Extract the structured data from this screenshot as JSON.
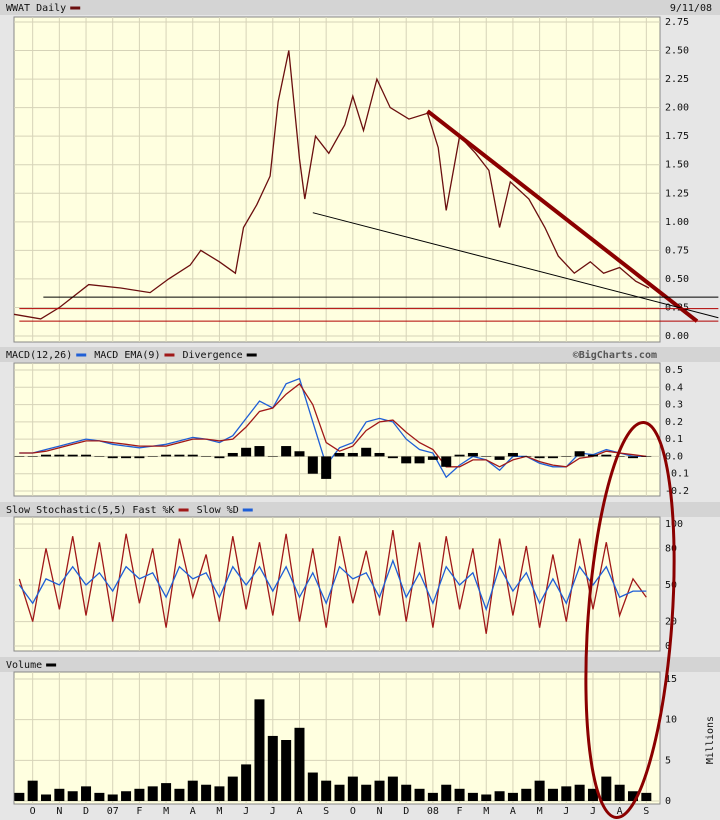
{
  "chart_data": [
    {
      "type": "line",
      "date": "9/11/08",
      "grid": true,
      "xlim": [
        -0.7,
        23.4
      ],
      "ylim": [
        0,
        2.75
      ],
      "yticks": [
        {
          "value": 0,
          "label": "0.00"
        },
        {
          "value": 0.25,
          "label": "0.25"
        },
        {
          "value": 0.5,
          "label": "0.50"
        },
        {
          "value": 0.75,
          "label": "0.75"
        },
        {
          "value": 1,
          "label": "1.00"
        },
        {
          "value": 1.25,
          "label": "1.25"
        },
        {
          "value": 1.5,
          "label": "1.50"
        },
        {
          "value": 1.75,
          "label": "1.75"
        },
        {
          "value": 2,
          "label": "2.00"
        },
        {
          "value": 2.25,
          "label": "2.25"
        },
        {
          "value": 2.5,
          "label": "2.50"
        },
        {
          "value": 2.75,
          "label": "2.75"
        }
      ],
      "x": [
        -0.7,
        0.3,
        1.0,
        2.1,
        3.3,
        4.4,
        5.1,
        5.9,
        6.3,
        7.0,
        7.6,
        7.9,
        8.4,
        8.9,
        9.2,
        9.6,
        10.0,
        10.2,
        10.6,
        11.1,
        11.7,
        12.0,
        12.4,
        12.9,
        13.4,
        14.1,
        14.8,
        15.2,
        15.5,
        16.0,
        16.6,
        17.1,
        17.5,
        17.9,
        18.6,
        19.2,
        19.7,
        20.3,
        20.9,
        21.4,
        22.0,
        22.6,
        23.1
      ],
      "series": [
        {
          "name": "WWAT Daily",
          "color": "#6b0f0f",
          "values": [
            0.19,
            0.15,
            0.25,
            0.45,
            0.42,
            0.38,
            0.5,
            0.62,
            0.75,
            0.65,
            0.55,
            0.95,
            1.15,
            1.4,
            2.05,
            2.5,
            1.55,
            1.2,
            1.75,
            1.6,
            1.85,
            2.1,
            1.8,
            2.25,
            2.0,
            1.9,
            1.95,
            1.65,
            1.1,
            1.75,
            1.6,
            1.45,
            0.95,
            1.35,
            1.2,
            0.95,
            0.7,
            0.55,
            0.65,
            0.55,
            0.6,
            0.48,
            0.42
          ]
        }
      ],
      "trendlines": [
        {
          "x": [
            14.8,
            24.9
          ],
          "y": [
            1.97,
            0.13
          ],
          "color": "#8b0000",
          "weight": "heavy"
        },
        {
          "x": [
            10.5,
            25.7
          ],
          "y": [
            1.08,
            0.16
          ],
          "color": "#000000",
          "weight": "thin"
        },
        {
          "x": [
            0.4,
            25.7
          ],
          "y": [
            0.34,
            0.34
          ],
          "color": "#000000",
          "weight": "thin"
        },
        {
          "x": [
            -0.5,
            25.7
          ],
          "y": [
            0.24,
            0.24
          ],
          "color": "#b00000",
          "weight": "thin"
        },
        {
          "x": [
            -0.5,
            25.7
          ],
          "y": [
            0.13,
            0.13
          ],
          "color": "#b00000",
          "weight": "thin"
        }
      ]
    },
    {
      "type": "line",
      "credit": "©BigCharts.com",
      "grid": true,
      "xlim": [
        -0.7,
        23.4
      ],
      "ylim": [
        -0.2,
        0.5
      ],
      "yticks": [
        0.5,
        0.4,
        0.3,
        0.2,
        0.1,
        {
          "value": 0,
          "label": "0.0"
        },
        -0.1,
        -0.2
      ],
      "x": [
        -0.5,
        0,
        0.5,
        1,
        1.5,
        2,
        2.5,
        3,
        3.5,
        4,
        4.5,
        5,
        5.5,
        6,
        6.5,
        7,
        7.5,
        8,
        8.5,
        9,
        9.5,
        10,
        10.5,
        11,
        11.5,
        12,
        12.5,
        13,
        13.5,
        14,
        14.5,
        15,
        15.5,
        16,
        16.5,
        17,
        17.5,
        18,
        18.5,
        19,
        19.5,
        20,
        20.5,
        21,
        21.5,
        22,
        22.5,
        23
      ],
      "series": [
        {
          "name": "MACD(12,26)",
          "color": "#1f5fd6",
          "values": [
            0.02,
            0.02,
            0.04,
            0.06,
            0.08,
            0.1,
            0.09,
            0.07,
            0.06,
            0.05,
            0.06,
            0.07,
            0.09,
            0.11,
            0.1,
            0.08,
            0.12,
            0.22,
            0.32,
            0.28,
            0.42,
            0.45,
            0.2,
            -0.05,
            0.05,
            0.08,
            0.2,
            0.22,
            0.2,
            0.1,
            0.04,
            0.02,
            -0.12,
            -0.05,
            0.0,
            -0.02,
            -0.08,
            0.0,
            0.0,
            -0.04,
            -0.06,
            -0.06,
            0.02,
            0.01,
            0.04,
            0.02,
            0.0,
            0.0
          ]
        },
        {
          "name": "MACD EMA(9)",
          "color": "#a01818",
          "values": [
            0.02,
            0.02,
            0.03,
            0.05,
            0.07,
            0.09,
            0.09,
            0.08,
            0.07,
            0.06,
            0.06,
            0.06,
            0.08,
            0.1,
            0.1,
            0.09,
            0.1,
            0.17,
            0.26,
            0.28,
            0.36,
            0.42,
            0.3,
            0.08,
            0.03,
            0.06,
            0.15,
            0.2,
            0.21,
            0.14,
            0.08,
            0.04,
            -0.06,
            -0.06,
            -0.02,
            -0.02,
            -0.06,
            -0.02,
            0.0,
            -0.03,
            -0.05,
            -0.06,
            -0.01,
            0.0,
            0.03,
            0.02,
            0.01,
            0.0
          ]
        },
        {
          "name": "Divergence",
          "color": "#000000",
          "type": "bar",
          "values": [
            0,
            0,
            0.01,
            0.01,
            0.01,
            0.01,
            0,
            -0.01,
            -0.01,
            -0.01,
            0,
            0.01,
            0.01,
            0.01,
            0,
            -0.01,
            0.02,
            0.05,
            0.06,
            0,
            0.06,
            0.03,
            -0.1,
            -0.13,
            0.02,
            0.02,
            0.05,
            0.02,
            -0.01,
            -0.04,
            -0.04,
            -0.02,
            -0.06,
            0.01,
            0.02,
            0,
            -0.02,
            0.02,
            0,
            -0.01,
            -0.01,
            0,
            0.03,
            0.01,
            0.01,
            0,
            -0.01,
            0
          ]
        }
      ]
    },
    {
      "type": "line",
      "title": "Slow Stochastic(5,5)",
      "grid": true,
      "xlim": [
        -0.7,
        23.4
      ],
      "ylim": [
        0,
        100
      ],
      "yticks": [
        100,
        80,
        50,
        20,
        0
      ],
      "x": [
        -0.5,
        0,
        0.5,
        1,
        1.5,
        2,
        2.5,
        3,
        3.5,
        4,
        4.5,
        5,
        5.5,
        6,
        6.5,
        7,
        7.5,
        8,
        8.5,
        9,
        9.5,
        10,
        10.5,
        11,
        11.5,
        12,
        12.5,
        13,
        13.5,
        14,
        14.5,
        15,
        15.5,
        16,
        16.5,
        17,
        17.5,
        18,
        18.5,
        19,
        19.5,
        20,
        20.5,
        21,
        21.5,
        22,
        22.5,
        23
      ],
      "series": [
        {
          "name": "Fast %K",
          "color": "#a01818",
          "values": [
            55,
            20,
            80,
            30,
            90,
            25,
            85,
            20,
            92,
            35,
            80,
            15,
            88,
            40,
            75,
            20,
            90,
            30,
            85,
            25,
            92,
            20,
            80,
            15,
            90,
            35,
            78,
            25,
            95,
            20,
            85,
            15,
            90,
            30,
            80,
            10,
            88,
            25,
            82,
            15,
            75,
            20,
            88,
            30,
            85,
            25,
            55,
            40
          ]
        },
        {
          "name": "Slow %D",
          "color": "#1f5fd6",
          "values": [
            50,
            35,
            55,
            50,
            65,
            50,
            60,
            45,
            65,
            55,
            60,
            40,
            65,
            55,
            60,
            40,
            65,
            50,
            65,
            45,
            65,
            40,
            60,
            35,
            65,
            55,
            60,
            40,
            70,
            40,
            60,
            35,
            65,
            50,
            60,
            30,
            65,
            45,
            60,
            35,
            55,
            35,
            65,
            50,
            65,
            40,
            45,
            45
          ]
        }
      ]
    },
    {
      "type": "bar",
      "y_label": "Millions",
      "grid": true,
      "xlim": [
        -0.7,
        23.4
      ],
      "ylim": [
        0,
        15
      ],
      "yticks": [
        15,
        10,
        5,
        0
      ],
      "xticks": [
        {
          "value": 0,
          "label": "O"
        },
        {
          "value": 1,
          "label": "N"
        },
        {
          "value": 2,
          "label": "D"
        },
        {
          "value": 3,
          "label": "07"
        },
        {
          "value": 4,
          "label": "F"
        },
        {
          "value": 5,
          "label": "M"
        },
        {
          "value": 6,
          "label": "A"
        },
        {
          "value": 7,
          "label": "M"
        },
        {
          "value": 8,
          "label": "J"
        },
        {
          "value": 9,
          "label": "J"
        },
        {
          "value": 10,
          "label": "A"
        },
        {
          "value": 11,
          "label": "S"
        },
        {
          "value": 12,
          "label": "O"
        },
        {
          "value": 13,
          "label": "N"
        },
        {
          "value": 14,
          "label": "D"
        },
        {
          "value": 15,
          "label": "08"
        },
        {
          "value": 16,
          "label": "F"
        },
        {
          "value": 17,
          "label": "M"
        },
        {
          "value": 18,
          "label": "A"
        },
        {
          "value": 19,
          "label": "M"
        },
        {
          "value": 20,
          "label": "J"
        },
        {
          "value": 21,
          "label": "J"
        },
        {
          "value": 22,
          "label": "A"
        },
        {
          "value": 23,
          "label": "S"
        }
      ],
      "x": [
        -0.5,
        0,
        0.5,
        1,
        1.5,
        2,
        2.5,
        3,
        3.5,
        4,
        4.5,
        5,
        5.5,
        6,
        6.5,
        7,
        7.5,
        8,
        8.5,
        9,
        9.5,
        10,
        10.5,
        11,
        11.5,
        12,
        12.5,
        13,
        13.5,
        14,
        14.5,
        15,
        15.5,
        16,
        16.5,
        17,
        17.5,
        18,
        18.5,
        19,
        19.5,
        20,
        20.5,
        21,
        21.5,
        22,
        22.5,
        23
      ],
      "series": [
        {
          "name": "Volume",
          "color": "#000000",
          "values": [
            1.0,
            2.5,
            0.8,
            1.5,
            1.2,
            1.8,
            1.0,
            0.8,
            1.2,
            1.5,
            1.8,
            2.2,
            1.5,
            2.5,
            2.0,
            1.8,
            3.0,
            4.5,
            12.5,
            8.0,
            7.5,
            9.0,
            3.5,
            2.5,
            2.0,
            3.0,
            2.0,
            2.5,
            3.0,
            2.0,
            1.5,
            1.0,
            2.0,
            1.5,
            1.0,
            0.8,
            1.2,
            1.0,
            1.5,
            2.5,
            1.5,
            1.8,
            2.0,
            1.5,
            3.0,
            2.0,
            1.2,
            1.0
          ]
        }
      ]
    }
  ]
}
